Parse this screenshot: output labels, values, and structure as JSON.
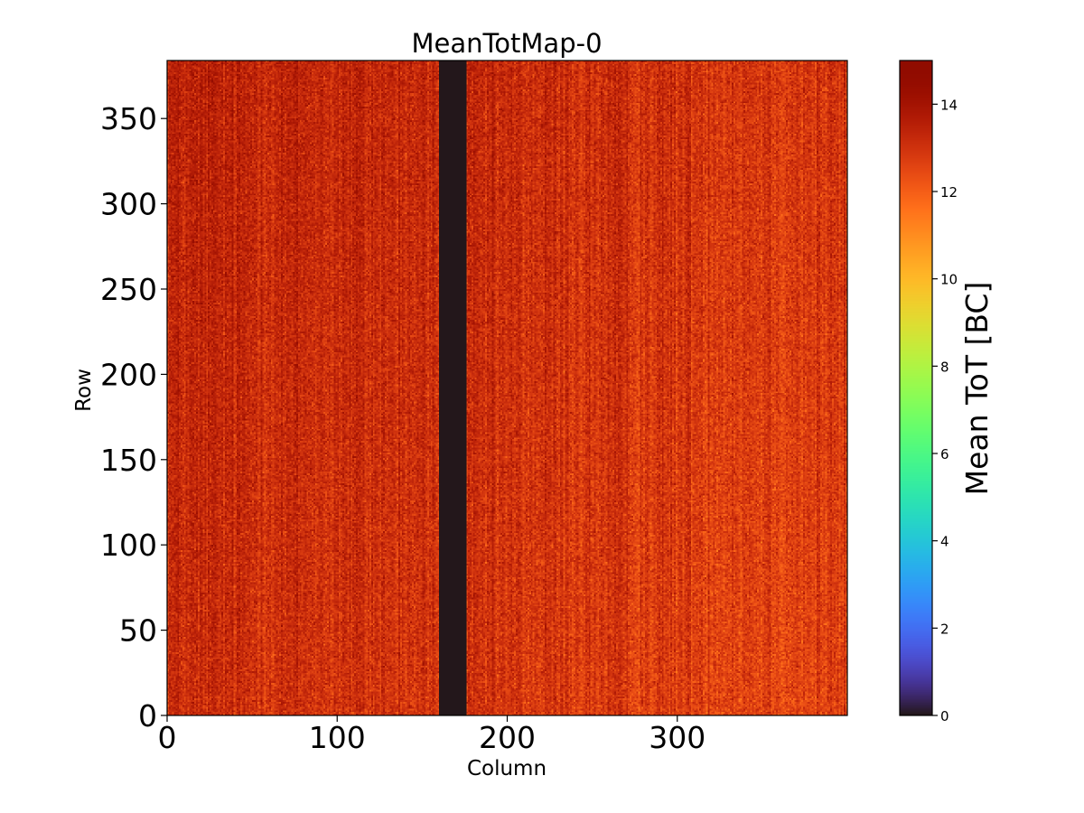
{
  "chart_data": {
    "type": "heatmap",
    "title": "MeanTotMap-0",
    "xlabel": "Column",
    "ylabel": "Row",
    "colorbar_label": "Mean ToT [BC]",
    "colormap": "turbo",
    "xlim": [
      0,
      400
    ],
    "ylim": [
      0,
      384
    ],
    "clim": [
      0,
      15
    ],
    "x_ticks": [
      0,
      100,
      200,
      300
    ],
    "y_ticks": [
      0,
      50,
      100,
      150,
      200,
      250,
      300,
      350
    ],
    "colorbar_ticks": [
      0,
      2,
      4,
      6,
      8,
      10,
      12,
      14
    ],
    "grid": false,
    "background_mean_tot": 13.0,
    "dead_column_range": [
      160,
      176
    ],
    "dead_column_value": 0
  }
}
